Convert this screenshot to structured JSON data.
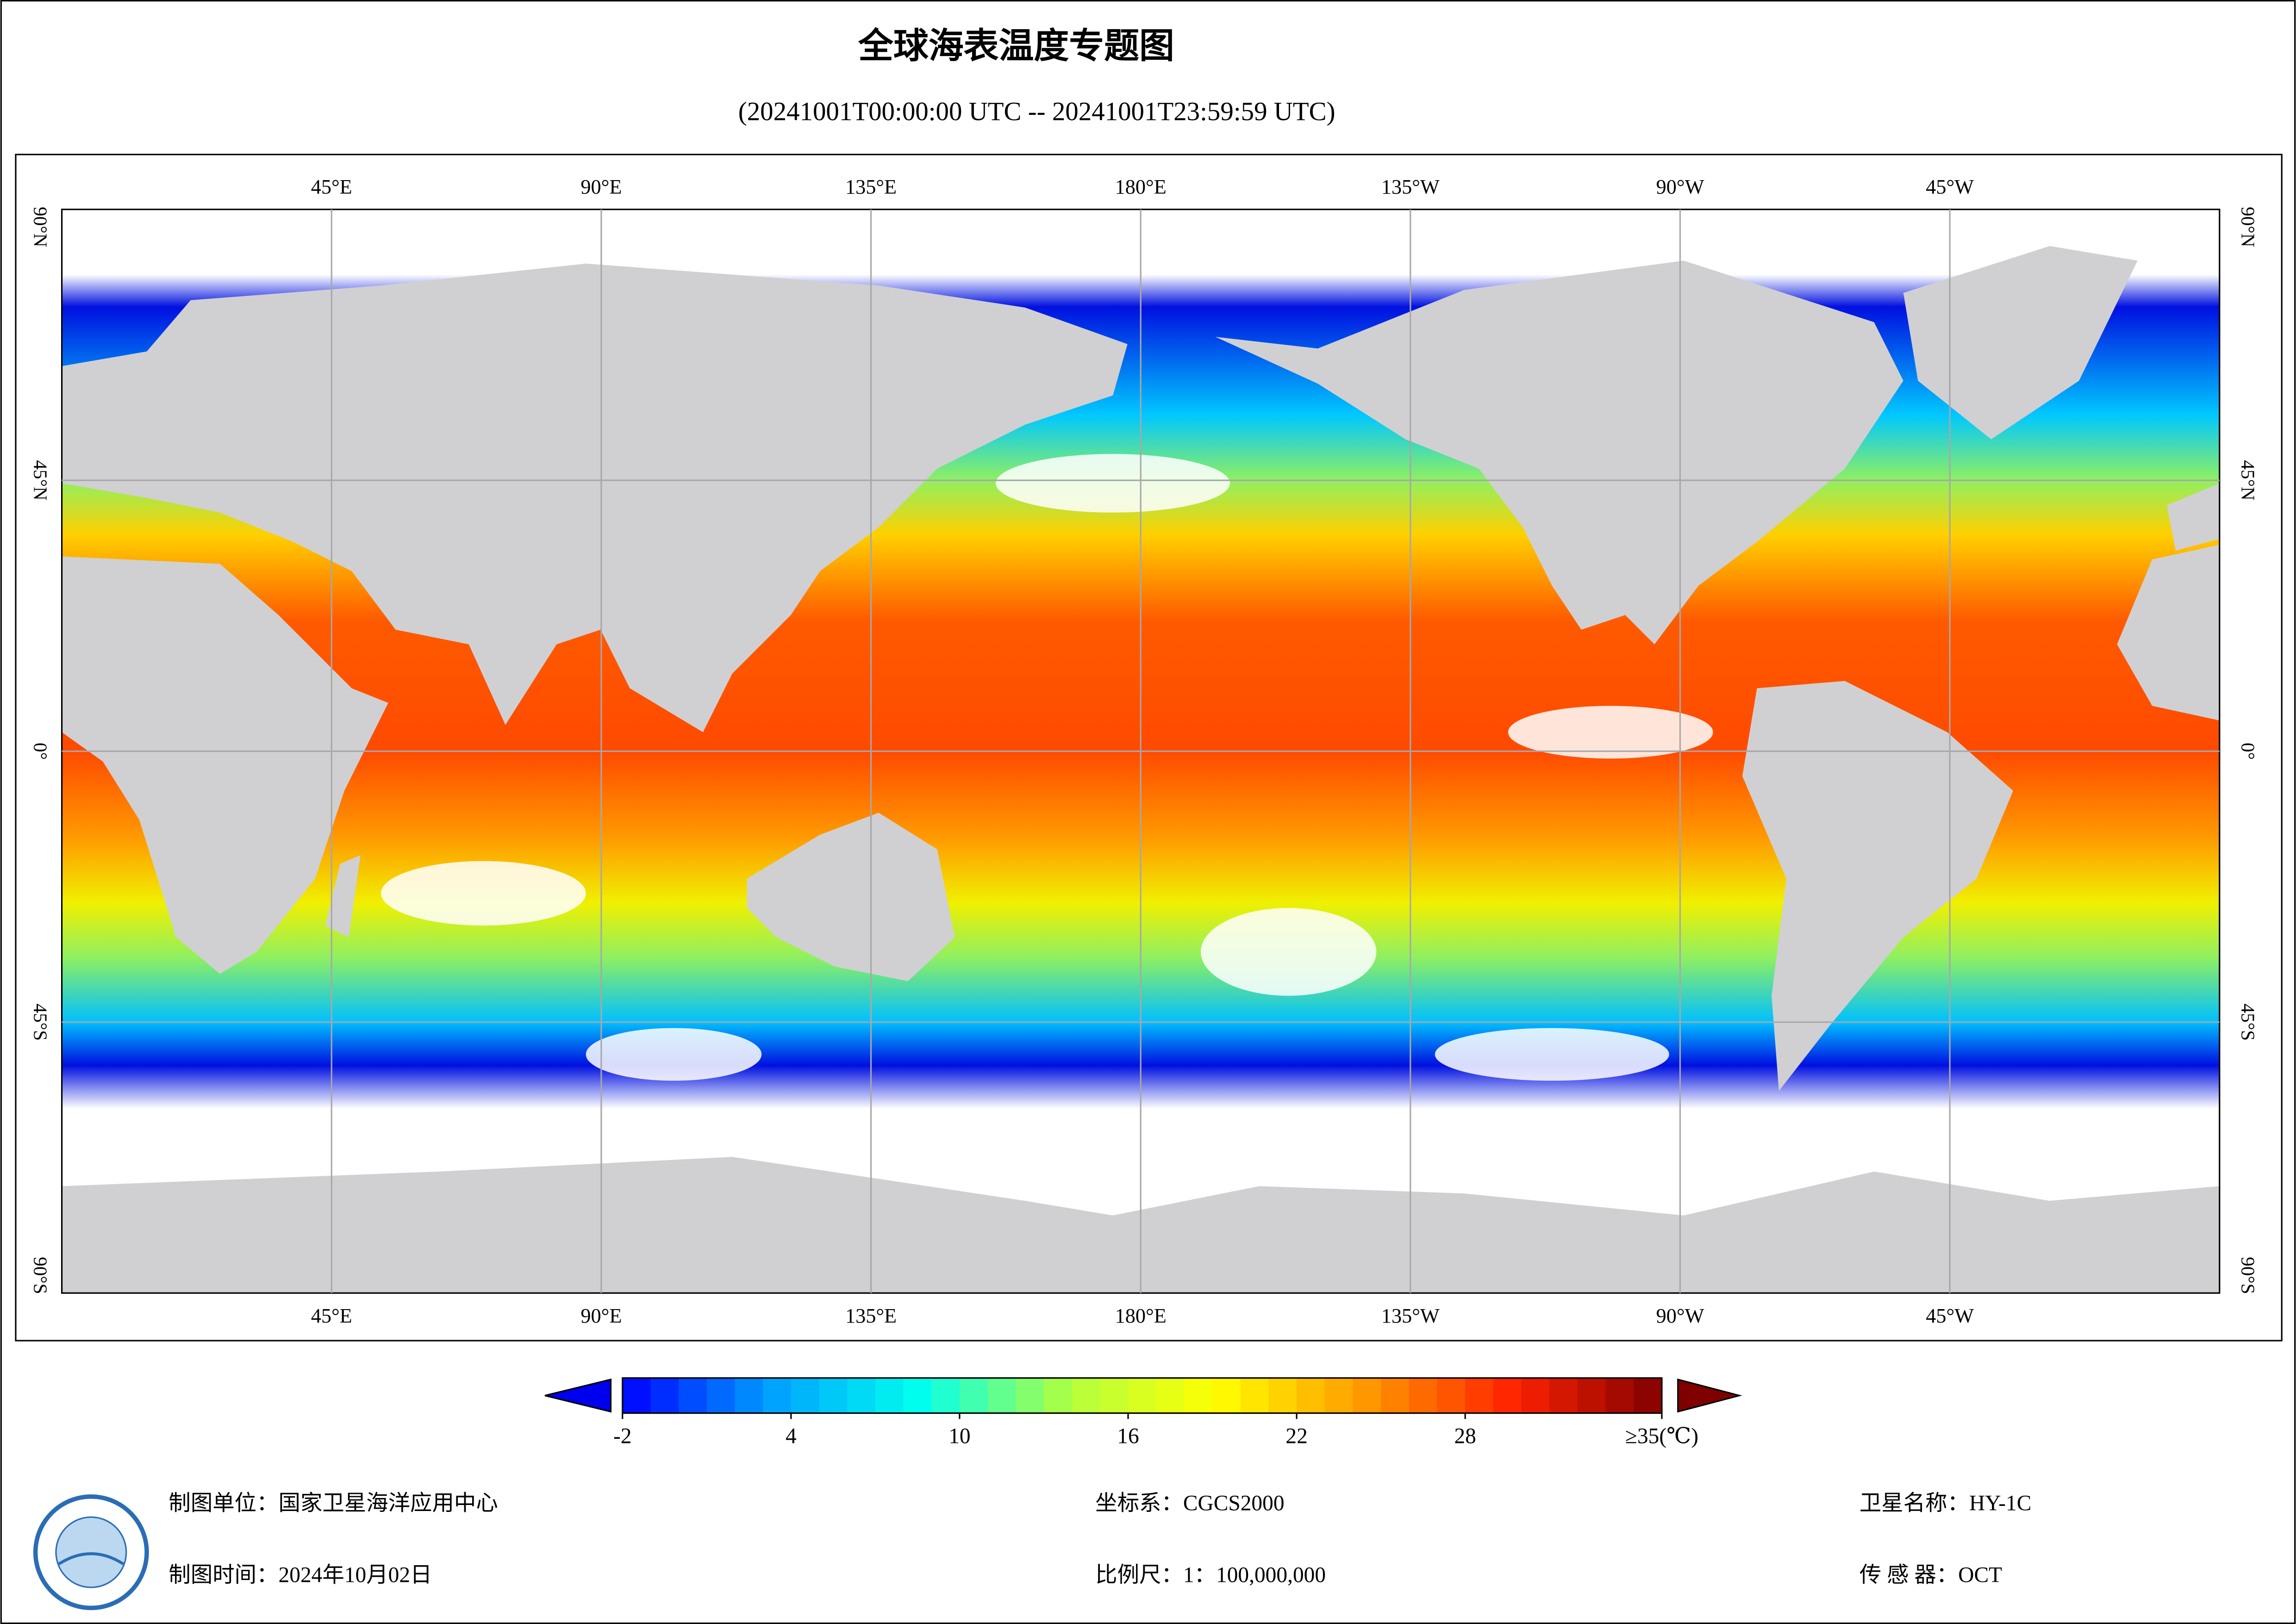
{
  "header": {
    "title": "全球海表温度专题图",
    "subtitle": "(20241001T00:00:00 UTC -- 20241001T23:59:59 UTC)"
  },
  "map": {
    "lon_range": [
      0,
      360
    ],
    "lat_range": [
      -90,
      90
    ],
    "lon_ticks": [
      {
        "value": 45,
        "label": "45°E"
      },
      {
        "value": 90,
        "label": "90°E"
      },
      {
        "value": 135,
        "label": "135°E"
      },
      {
        "value": 180,
        "label": "180°E"
      },
      {
        "value": 225,
        "label": "135°W"
      },
      {
        "value": 270,
        "label": "90°W"
      },
      {
        "value": 315,
        "label": "45°W"
      }
    ],
    "lat_ticks": [
      {
        "value": 90,
        "label": "90°N"
      },
      {
        "value": 45,
        "label": "45°N"
      },
      {
        "value": 0,
        "label": "0°"
      },
      {
        "value": -45,
        "label": "45°S"
      },
      {
        "value": -90,
        "label": "90°S"
      }
    ],
    "grid": true
  },
  "colorbar": {
    "range": [
      -2,
      35
    ],
    "colors": [
      "#0000ff",
      "#00a0ff",
      "#00ffee",
      "#b0ff40",
      "#ffff00",
      "#ff9900",
      "#ff2200",
      "#800000"
    ],
    "ticks": [
      -2,
      4,
      10,
      16,
      22,
      28,
      {
        "value": 35,
        "label": "≥35(℃)"
      }
    ]
  },
  "footer": {
    "unit": "制图单位：国家卫星海洋应用中心",
    "date": "制图时间：2024年10月02日",
    "crs": "坐标系：CGCS2000",
    "scale": "比例尺：1：100,000,000",
    "satellite": "卫星名称：HY-1C",
    "sensor": "传 感 器：OCT"
  }
}
